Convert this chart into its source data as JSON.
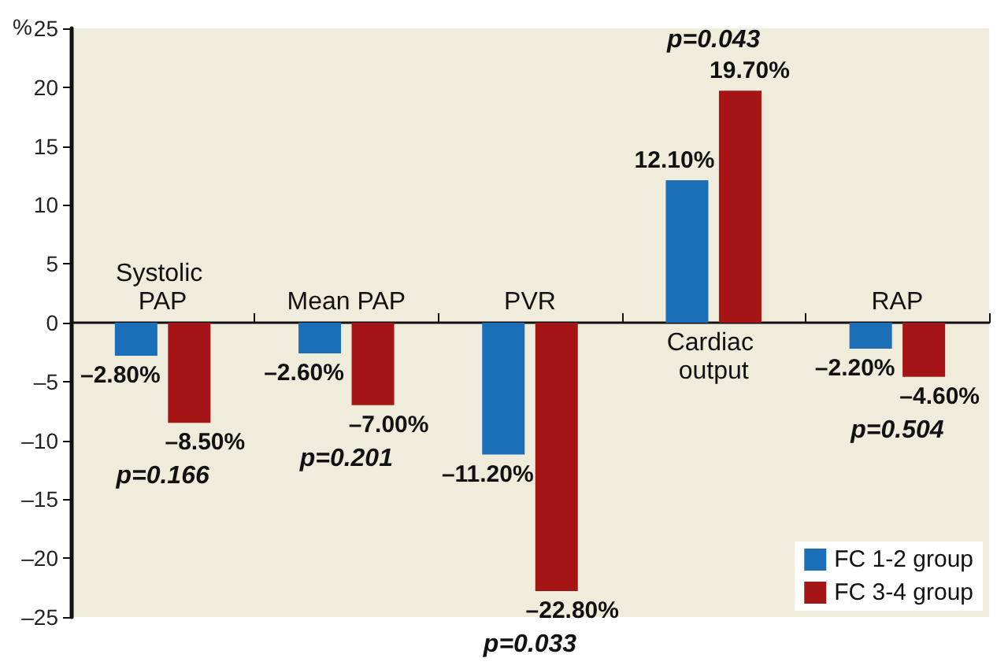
{
  "chart_data": {
    "type": "bar",
    "ylabel": "%",
    "categories": [
      "Systolic PAP",
      "Mean PAP",
      "PVR",
      "Cardiac output",
      "RAP"
    ],
    "series": [
      {
        "name": "FC 1-2 group",
        "color": "#1a6fb8",
        "values": [
          -2.8,
          -2.6,
          -11.2,
          12.1,
          -2.2
        ],
        "value_labels": [
          "–2.80%",
          "–2.60%",
          "–11.20%",
          "12.10%",
          "–2.20%"
        ]
      },
      {
        "name": "FC 3-4 group",
        "color": "#a51515",
        "values": [
          -8.5,
          -7.0,
          -22.8,
          19.7,
          -4.6
        ],
        "value_labels": [
          "–8.50%",
          "–7.00%",
          "–22.80%",
          "19.70%",
          "–4.60%"
        ]
      }
    ],
    "ylim": [
      -25,
      25
    ],
    "yticks": [
      {
        "value": -25,
        "label": "–25"
      },
      {
        "value": -20,
        "label": "–20"
      },
      {
        "value": -15,
        "label": "–15"
      },
      {
        "value": -10,
        "label": "–10"
      },
      {
        "value": -5,
        "label": "–5"
      },
      0,
      5,
      10,
      15,
      20,
      25
    ],
    "annotations": [
      "p=0.166",
      "p=0.201",
      "p=0.033",
      "p=0.043",
      "p=0.504"
    ],
    "grid": false,
    "legend": "bottom right"
  }
}
